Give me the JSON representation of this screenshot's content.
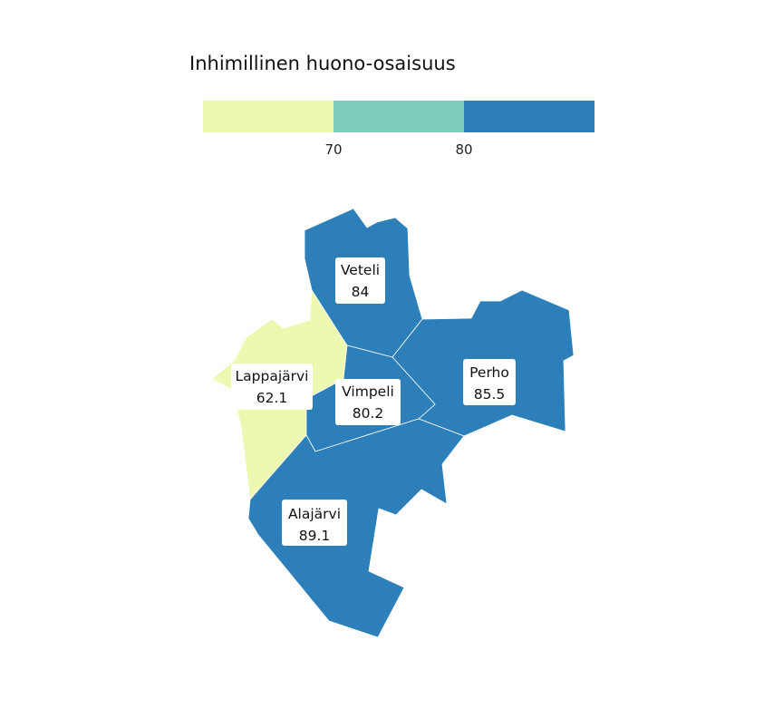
{
  "legend": {
    "title": "Inhimillinen huono-osaisuus",
    "bins": [
      {
        "color": "#edf8b1"
      },
      {
        "color": "#7fcdbb"
      },
      {
        "color": "#2c7fb8"
      }
    ],
    "breaks": [
      "70",
      "80"
    ]
  },
  "regions": [
    {
      "name": "Veteli",
      "value": "84",
      "color": "#2c7fb8"
    },
    {
      "name": "Lappajärvi",
      "value": "62.1",
      "color": "#edf8b1"
    },
    {
      "name": "Vimpeli",
      "value": "80.2",
      "color": "#2c7fb8"
    },
    {
      "name": "Perho",
      "value": "85.5",
      "color": "#2c7fb8"
    },
    {
      "name": "Alajärvi",
      "value": "89.1",
      "color": "#2c7fb8"
    }
  ]
}
